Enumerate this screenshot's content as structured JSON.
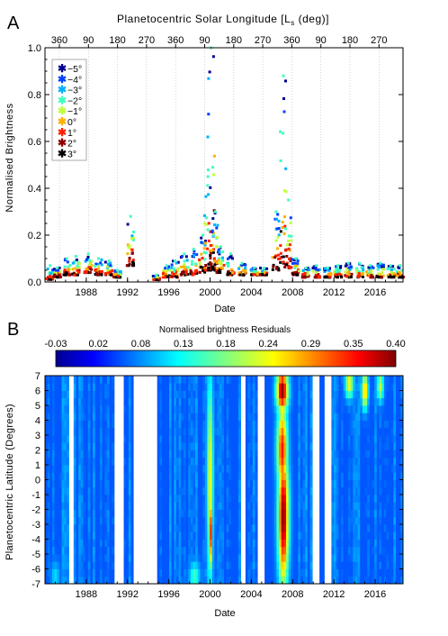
{
  "panel_a_letter": "A",
  "panel_b_letter": "B",
  "colors": {
    "lat_-5": "#00008f",
    "lat_-4": "#0040ff",
    "lat_-3": "#00b0ff",
    "lat_-2": "#40ffbf",
    "lat_-1": "#bfff40",
    "lat_0": "#ffb000",
    "lat_1": "#ff2000",
    "lat_2": "#8f0000",
    "lat_3": "#000000"
  },
  "chart_data": [
    {
      "type": "scatter",
      "title": "",
      "top_axis_title": "Planetocentric Solar Longitude [L_s (deg)]",
      "top_axis_title_main": "Planetocentric Solar Longitude [L",
      "top_axis_title_sub": "s",
      "top_axis_title_end": " (deg)]",
      "top_tick_labels": [
        "360",
        "90",
        "180",
        "270",
        "360",
        "90",
        "180",
        "270",
        "360",
        "90",
        "180",
        "270"
      ],
      "xlabel": "Date",
      "ylabel": "Normalised Brightness",
      "xlim": [
        1984.0,
        2018.7
      ],
      "ylim": [
        0,
        1.0
      ],
      "x_ticks": [
        1988,
        1992,
        1996,
        2000,
        2004,
        2008,
        2012,
        2016
      ],
      "x_tick_labels": [
        "1988",
        "1992",
        "1996",
        "2000",
        "2004",
        "2008",
        "2012",
        "2016"
      ],
      "y_ticks": [
        0.0,
        0.2,
        0.4,
        0.6,
        0.8,
        1.0
      ],
      "y_tick_labels": [
        "0.0",
        "0.2",
        "0.4",
        "0.6",
        "0.8",
        "1.0"
      ],
      "legend_placement": "top-left",
      "legend": [
        "−5°",
        "−4°",
        "−3°",
        "−2°",
        "−1°",
        "0°",
        "1°",
        "2°",
        "3°"
      ],
      "series_latitudes": [
        -5,
        -4,
        -3,
        -2,
        -1,
        0,
        1,
        2,
        3
      ],
      "clusters": [
        {
          "x": 1984.5,
          "low": 0.01,
          "high": 0.07
        },
        {
          "x": 1985.2,
          "low": 0.02,
          "high": 0.06
        },
        {
          "x": 1986.1,
          "low": 0.03,
          "high": 0.1
        },
        {
          "x": 1987.0,
          "low": 0.03,
          "high": 0.11
        },
        {
          "x": 1988.2,
          "low": 0.04,
          "high": 0.12
        },
        {
          "x": 1989.2,
          "low": 0.03,
          "high": 0.1
        },
        {
          "x": 1990.2,
          "low": 0.03,
          "high": 0.09
        },
        {
          "x": 1991.0,
          "low": 0.02,
          "high": 0.05
        },
        {
          "x": 1992.3,
          "low": 0.07,
          "high": 0.28
        },
        {
          "x": 1994.8,
          "low": 0.01,
          "high": 0.03
        },
        {
          "x": 1995.8,
          "low": 0.02,
          "high": 0.07
        },
        {
          "x": 1996.6,
          "low": 0.02,
          "high": 0.09
        },
        {
          "x": 1997.5,
          "low": 0.03,
          "high": 0.12
        },
        {
          "x": 1998.4,
          "low": 0.03,
          "high": 0.14
        },
        {
          "x": 1999.3,
          "low": 0.04,
          "high": 0.2
        },
        {
          "x": 1999.8,
          "low": 0.05,
          "high": 0.45
        },
        {
          "x": 2000.1,
          "low": 0.06,
          "high": 1.0
        },
        {
          "x": 2000.5,
          "low": 0.05,
          "high": 0.3
        },
        {
          "x": 2001.0,
          "low": 0.04,
          "high": 0.15
        },
        {
          "x": 2002.0,
          "low": 0.03,
          "high": 0.12
        },
        {
          "x": 2003.1,
          "low": 0.03,
          "high": 0.08
        },
        {
          "x": 2004.3,
          "low": 0.03,
          "high": 0.06
        },
        {
          "x": 2005.2,
          "low": 0.03,
          "high": 0.06
        },
        {
          "x": 2006.4,
          "low": 0.05,
          "high": 0.3
        },
        {
          "x": 2007.1,
          "low": 0.08,
          "high": 0.88
        },
        {
          "x": 2007.6,
          "low": 0.06,
          "high": 0.35
        },
        {
          "x": 2008.3,
          "low": 0.03,
          "high": 0.1
        },
        {
          "x": 2009.3,
          "low": 0.02,
          "high": 0.06
        },
        {
          "x": 2010.3,
          "low": 0.02,
          "high": 0.07
        },
        {
          "x": 2011.4,
          "low": 0.02,
          "high": 0.06
        },
        {
          "x": 2012.4,
          "low": 0.02,
          "high": 0.07
        },
        {
          "x": 2013.4,
          "low": 0.02,
          "high": 0.08
        },
        {
          "x": 2014.5,
          "low": 0.02,
          "high": 0.08
        },
        {
          "x": 2015.5,
          "low": 0.02,
          "high": 0.07
        },
        {
          "x": 2016.5,
          "low": 0.02,
          "high": 0.08
        },
        {
          "x": 2017.5,
          "low": 0.02,
          "high": 0.07
        },
        {
          "x": 2018.4,
          "low": 0.02,
          "high": 0.07
        }
      ]
    },
    {
      "type": "heatmap",
      "title": "Normalised brightness Residuals",
      "xlabel": "Date",
      "ylabel": "Planetocentric Latitude (Degrees)",
      "xlim": [
        1984.0,
        2018.7
      ],
      "ylim": [
        -7,
        7
      ],
      "x_ticks": [
        1988,
        1992,
        1996,
        2000,
        2004,
        2008,
        2012,
        2016
      ],
      "x_tick_labels": [
        "1988",
        "1992",
        "1996",
        "2000",
        "2004",
        "2008",
        "2012",
        "2016"
      ],
      "y_ticks": [
        7,
        6,
        5,
        4,
        3,
        2,
        1,
        0,
        -1,
        -2,
        -3,
        -4,
        -5,
        -6,
        -7
      ],
      "y_tick_labels": [
        "7",
        "6",
        "5",
        "4",
        "3",
        "2",
        "1",
        "0",
        "-1",
        "-2",
        "-3",
        "-4",
        "-5",
        "-6",
        "-7"
      ],
      "colorbar_ticks": [
        "-0.03",
        "0.02",
        "0.08",
        "0.13",
        "0.18",
        "0.24",
        "0.29",
        "0.35",
        "0.40"
      ],
      "colorbar_range": [
        -0.03,
        0.4
      ],
      "colormap": "jet",
      "gaps": [
        [
          1986.2,
          1986.8
        ],
        [
          1990.8,
          1991.6
        ],
        [
          1992.5,
          1994.8
        ],
        [
          2002.9,
          2003.5
        ],
        [
          2004.6,
          2005.3
        ],
        [
          2009.9,
          2010.5
        ],
        [
          2011.0,
          2011.7
        ]
      ],
      "hotspots": [
        {
          "x": 2000.0,
          "lat": 0.0,
          "value": 0.24,
          "width_years": 0.6,
          "lat_extent": 7
        },
        {
          "x": 2000.1,
          "lat": -3.5,
          "value": 0.33,
          "width_years": 0.3,
          "lat_extent": 2.5
        },
        {
          "x": 2007.1,
          "lat": -2.5,
          "value": 0.4,
          "width_years": 1.0,
          "lat_extent": 4.5
        },
        {
          "x": 2007.0,
          "lat": 6.0,
          "value": 0.4,
          "width_years": 1.1,
          "lat_extent": 1.5
        },
        {
          "x": 2007.0,
          "lat": 2.0,
          "value": 0.34,
          "width_years": 1.0,
          "lat_extent": 3.0
        },
        {
          "x": 2013.5,
          "lat": 6.5,
          "value": 0.24,
          "width_years": 0.8,
          "lat_extent": 1.0
        },
        {
          "x": 2015.0,
          "lat": 6.0,
          "value": 0.28,
          "width_years": 0.6,
          "lat_extent": 1.2
        },
        {
          "x": 2016.5,
          "lat": 6.3,
          "value": 0.22,
          "width_years": 0.6,
          "lat_extent": 1.0
        },
        {
          "x": 1998.5,
          "lat": -6.5,
          "value": 0.16,
          "width_years": 1.0,
          "lat_extent": 1.0
        },
        {
          "x": 1985.0,
          "lat": -6.5,
          "value": 0.12,
          "width_years": 0.8,
          "lat_extent": 1.0
        }
      ],
      "baseline_value": 0.06
    }
  ]
}
